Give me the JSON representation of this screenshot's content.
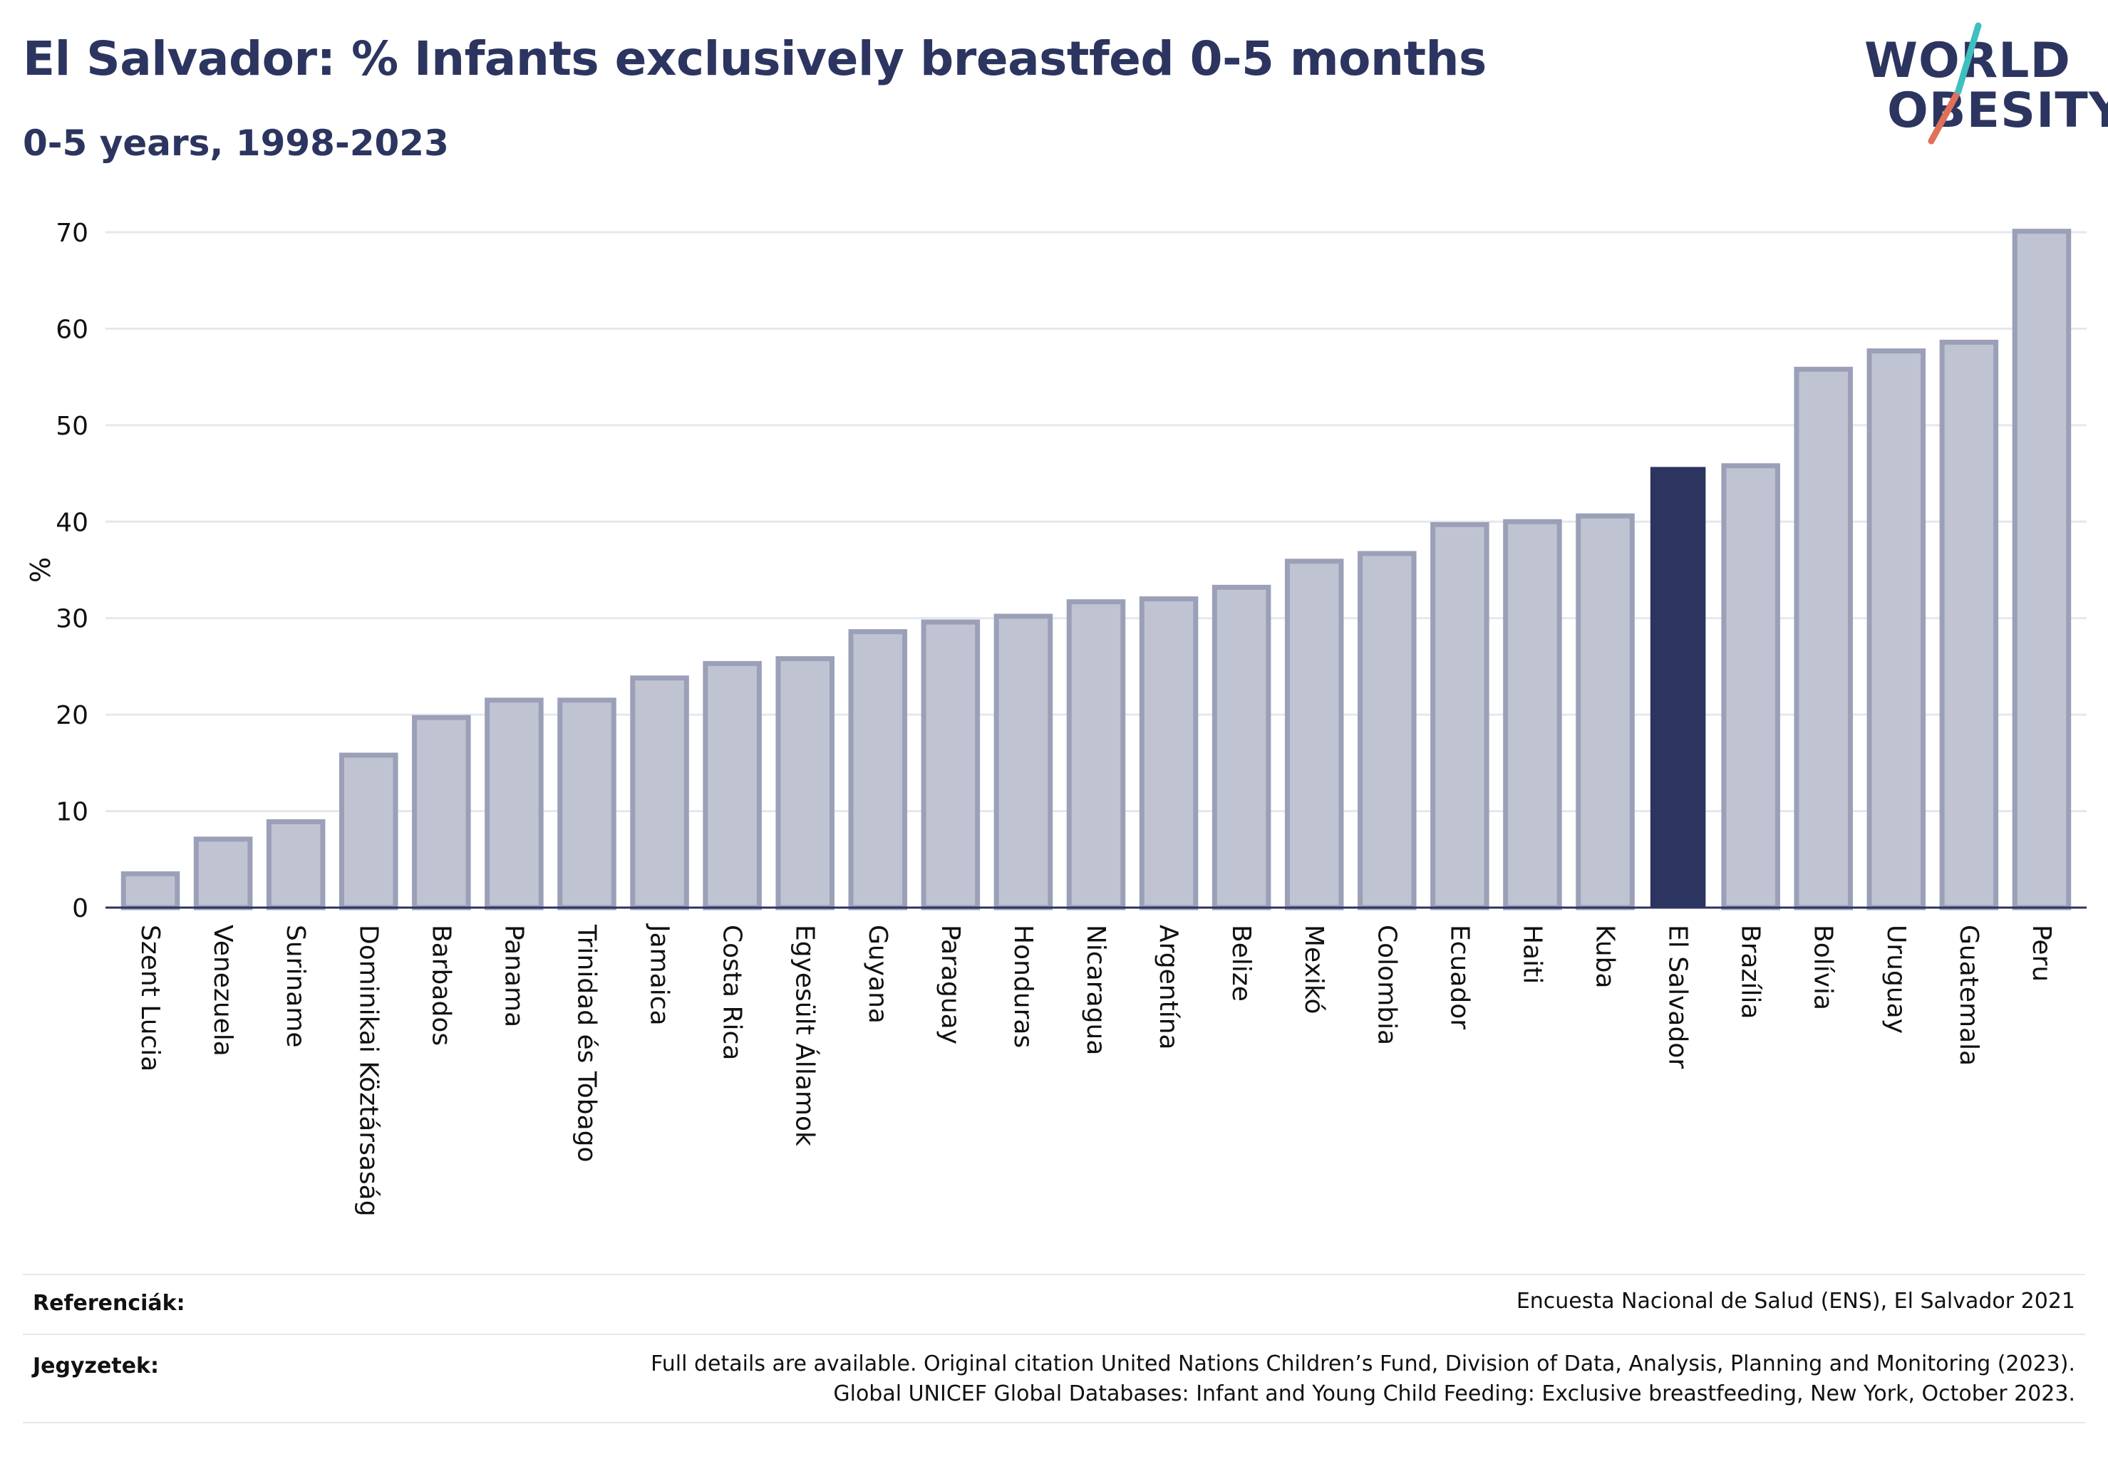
{
  "header": {
    "title": "El Salvador: % Infants exclusively breastfed 0-5 months",
    "subtitle": "0-5 years, 1998-2023"
  },
  "logo": {
    "line1": "WORLD",
    "line2": "OBESITY",
    "accent_colors": [
      "#3fbfbf",
      "#e0705a"
    ]
  },
  "chart_data": {
    "type": "bar",
    "ylabel": "%",
    "ylim": [
      0,
      70
    ],
    "yticks": [
      0,
      10,
      20,
      30,
      40,
      50,
      60,
      70
    ],
    "grid": true,
    "highlight": "El Salvador",
    "colors": {
      "default": "#c0c3d1",
      "default_border": "#9ba0b8",
      "highlight": "#2c3560"
    },
    "categories": [
      "Szent Lucia",
      "Venezuela",
      "Suriname",
      "Dominikai Köztársaság",
      "Barbados",
      "Panama",
      "Trinidad és Tobago",
      "Jamaica",
      "Costa Rica",
      "Egyesült Államok",
      "Guyana",
      "Paraguay",
      "Honduras",
      "Nicaragua",
      "Argentína",
      "Belize",
      "Mexikó",
      "Colombia",
      "Ecuador",
      "Haiti",
      "Kuba",
      "El Salvador",
      "Brazília",
      "Bolívia",
      "Uruguay",
      "Guatemala",
      "Peru"
    ],
    "values": [
      3.5,
      7.1,
      8.9,
      15.8,
      19.7,
      21.5,
      21.5,
      23.8,
      25.3,
      25.8,
      28.6,
      29.6,
      30.2,
      31.7,
      32.0,
      33.2,
      35.9,
      36.7,
      39.7,
      40.0,
      40.6,
      45.6,
      45.8,
      55.8,
      57.7,
      58.6,
      70.1
    ]
  },
  "footer": {
    "references_label": "Referenciák:",
    "references_text": "Encuesta Nacional de Salud (ENS), El Salvador 2021",
    "notes_label": "Jegyzetek:",
    "notes_line1": "Full details are available. Original citation United Nations Children’s Fund, Division of Data, Analysis, Planning and Monitoring (2023).",
    "notes_line2": "Global UNICEF Global Databases: Infant and Young Child Feeding: Exclusive breastfeeding, New York, October 2023."
  }
}
